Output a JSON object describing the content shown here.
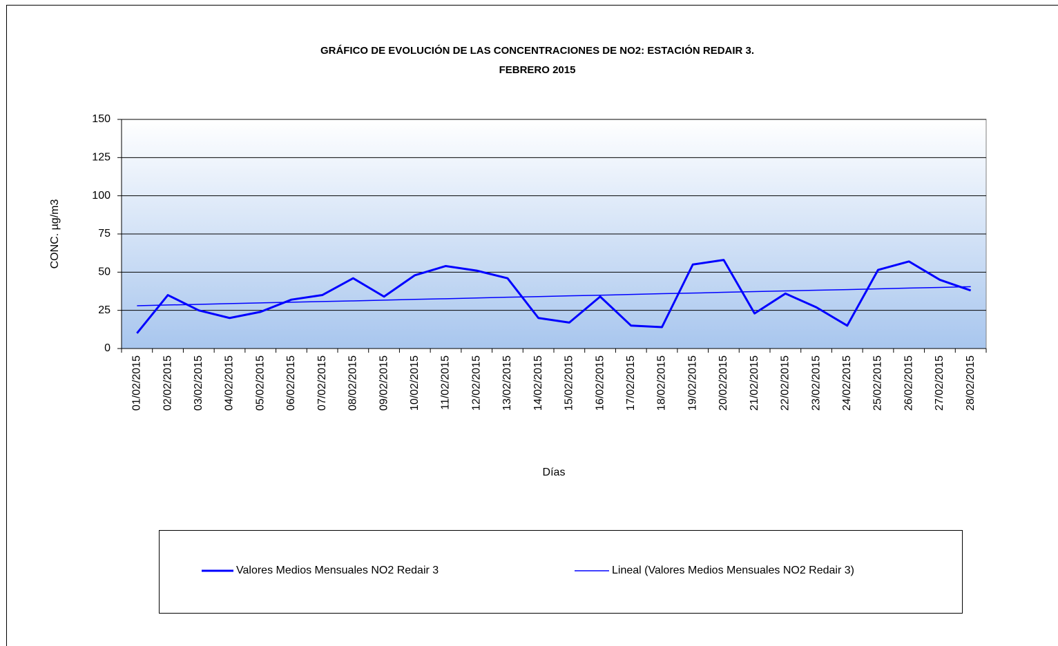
{
  "chart_data": {
    "type": "line",
    "title": "GRÁFICO DE EVOLUCIÓN  DE LAS CONCENTRACIONES DE NO2: ESTACIÓN REDAIR 3.",
    "subtitle": "FEBRERO 2015",
    "y_label": "CONC.  µg/m3",
    "x_label": "Días",
    "categories": [
      "01/02/2015",
      "02/02/2015",
      "03/02/2015",
      "04/02/2015",
      "05/02/2015",
      "06/02/2015",
      "07/02/2015",
      "08/02/2015",
      "09/02/2015",
      "10/02/2015",
      "11/02/2015",
      "12/02/2015",
      "13/02/2015",
      "14/02/2015",
      "15/02/2015",
      "16/02/2015",
      "17/02/2015",
      "18/02/2015",
      "19/02/2015",
      "20/02/2015",
      "21/02/2015",
      "22/02/2015",
      "23/02/2015",
      "24/02/2015",
      "25/02/2015",
      "26/02/2015",
      "27/02/2015",
      "28/02/2015"
    ],
    "series": [
      {
        "name": "Valores Medios Mensuales NO2 Redair 3",
        "color": "#0000ff",
        "width": 3,
        "values": [
          10,
          35,
          25,
          20,
          24,
          32,
          35,
          46,
          34,
          48,
          54,
          51,
          46,
          20,
          17,
          34,
          15,
          14,
          55,
          58,
          23,
          36,
          27,
          15,
          51.5,
          57,
          45,
          38
        ]
      },
      {
        "name": "Lineal (Valores Medios Mensuales NO2 Redair 3)",
        "color": "#0000ff",
        "width": 1.5,
        "values": [
          28.0,
          28.5,
          28.9,
          29.4,
          29.9,
          30.3,
          30.8,
          31.2,
          31.7,
          32.2,
          32.6,
          33.1,
          33.6,
          34.0,
          34.5,
          34.9,
          35.4,
          35.9,
          36.3,
          36.8,
          37.3,
          37.7,
          38.2,
          38.6,
          39.1,
          39.6,
          40.0,
          40.5
        ]
      }
    ],
    "ylim": [
      0,
      150
    ],
    "yticks": [
      0,
      25,
      50,
      75,
      100,
      125,
      150
    ],
    "grid": true,
    "legend": "bottom"
  }
}
